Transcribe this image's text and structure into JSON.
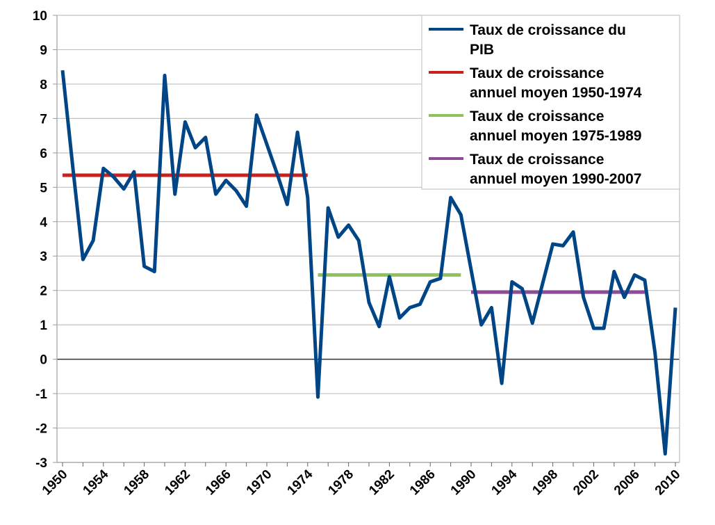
{
  "chart_data": {
    "type": "line",
    "title": "",
    "xlabel": "",
    "ylabel": "",
    "ylim": [
      -3,
      10
    ],
    "xlim": [
      1950,
      2010
    ],
    "grid": true,
    "legend_position": "top-right",
    "yticks": [
      "-3",
      "-2",
      "-1",
      "0",
      "1",
      "2",
      "3",
      "4",
      "5",
      "6",
      "7",
      "8",
      "9",
      "10"
    ],
    "xticks": [
      "1950",
      "1954",
      "1958",
      "1962",
      "1966",
      "1970",
      "1974",
      "1978",
      "1982",
      "1986",
      "1990",
      "1994",
      "1998",
      "2002",
      "2006",
      "2010"
    ],
    "x": [
      1950,
      1951,
      1952,
      1953,
      1954,
      1955,
      1956,
      1957,
      1958,
      1959,
      1960,
      1961,
      1962,
      1963,
      1964,
      1965,
      1966,
      1967,
      1968,
      1969,
      1970,
      1971,
      1972,
      1973,
      1974,
      1975,
      1976,
      1977,
      1978,
      1979,
      1980,
      1981,
      1982,
      1983,
      1984,
      1985,
      1986,
      1987,
      1988,
      1989,
      1990,
      1991,
      1992,
      1993,
      1994,
      1995,
      1996,
      1997,
      1998,
      1999,
      2000,
      2001,
      2002,
      2003,
      2004,
      2005,
      2006,
      2007,
      2008,
      2009,
      2010
    ],
    "series": [
      {
        "name": "Taux de croissance du PIB",
        "color": "#004586",
        "values": [
          8.4,
          5.6,
          2.9,
          3.45,
          5.55,
          5.3,
          4.95,
          5.45,
          2.7,
          2.55,
          8.25,
          4.8,
          6.9,
          6.15,
          6.45,
          4.8,
          5.2,
          4.9,
          4.45,
          7.1,
          6.25,
          5.4,
          4.5,
          6.6,
          4.7,
          -1.1,
          4.4,
          3.55,
          3.9,
          3.45,
          1.65,
          0.95,
          2.4,
          1.2,
          1.5,
          1.6,
          2.25,
          2.35,
          4.7,
          4.2,
          2.6,
          1.0,
          1.5,
          -0.7,
          2.25,
          2.05,
          1.05,
          2.2,
          3.35,
          3.3,
          3.7,
          1.8,
          0.9,
          0.9,
          2.55,
          1.8,
          2.45,
          2.3,
          0.2,
          -2.75,
          1.5
        ]
      },
      {
        "name": "Taux de croissance annuel moyen 1950-1974",
        "color": "#c9211e",
        "x_range": [
          1950,
          1974
        ],
        "value": 5.35
      },
      {
        "name": "Taux de croissance annuel moyen 1975-1989",
        "color": "#8fc25a",
        "x_range": [
          1975,
          1989
        ],
        "value": 2.45
      },
      {
        "name": "Taux de croissance annuel moyen 1990-2007",
        "color": "#8e4b96",
        "x_range": [
          1990,
          2007
        ],
        "value": 1.95
      }
    ],
    "legend": [
      [
        "Taux de croissance du",
        "PIB"
      ],
      [
        "Taux de croissance",
        "annuel moyen 1950-1974"
      ],
      [
        "Taux de croissance",
        "annuel moyen 1975-1989"
      ],
      [
        "Taux de croissance",
        "annuel moyen 1990-2007"
      ]
    ]
  }
}
